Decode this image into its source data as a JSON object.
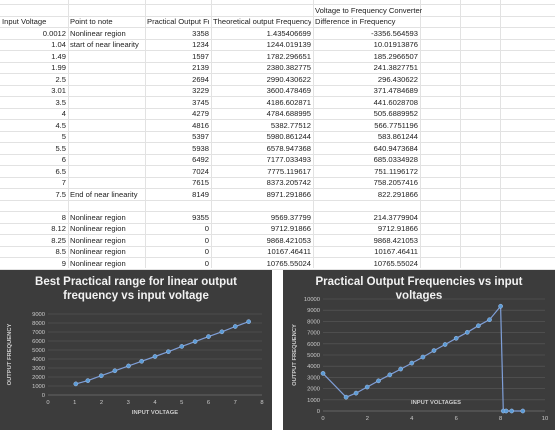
{
  "sheet": {
    "merged_title": "Voltage to Frequency Converter",
    "headers": [
      "Input Voltage",
      "Point to note",
      "Practical Output Fre",
      "Theoretical output Frequency",
      "Difference in Frequency"
    ],
    "rows": [
      [
        "0.0012",
        "Nonlinear region",
        "3358",
        "1.435406699",
        "-3356.564593"
      ],
      [
        "1.04",
        "start of near linearity",
        "1234",
        "1244.019139",
        "10.01913876"
      ],
      [
        "1.49",
        "",
        "1597",
        "1782.296651",
        "185.2966507"
      ],
      [
        "1.99",
        "",
        "2139",
        "2380.382775",
        "241.3827751"
      ],
      [
        "2.5",
        "",
        "2694",
        "2990.430622",
        "296.430622"
      ],
      [
        "3.01",
        "",
        "3229",
        "3600.478469",
        "371.4784689"
      ],
      [
        "3.5",
        "",
        "3745",
        "4186.602871",
        "441.6028708"
      ],
      [
        "4",
        "",
        "4279",
        "4784.688995",
        "505.6889952"
      ],
      [
        "4.5",
        "",
        "4816",
        "5382.77512",
        "566.7751196"
      ],
      [
        "5",
        "",
        "5397",
        "5980.861244",
        "583.861244"
      ],
      [
        "5.5",
        "",
        "5938",
        "6578.947368",
        "640.9473684"
      ],
      [
        "6",
        "",
        "6492",
        "7177.033493",
        "685.0334928"
      ],
      [
        "6.5",
        "",
        "7024",
        "7775.119617",
        "751.1196172"
      ],
      [
        "7",
        "",
        "7615",
        "8373.205742",
        "758.2057416"
      ],
      [
        "7.5",
        "End of near linearity",
        "8149",
        "8971.291866",
        "822.291866"
      ],
      [
        "",
        "",
        "",
        "",
        ""
      ],
      [
        "8",
        "Nonlinear region",
        "9355",
        "9569.37799",
        "214.3779904"
      ],
      [
        "8.12",
        "Nonlinear region",
        "0",
        "9712.91866",
        "9712.91866"
      ],
      [
        "8.25",
        "Nonlinear region",
        "0",
        "9868.421053",
        "9868.421053"
      ],
      [
        "8.5",
        "Nonlinear region",
        "0",
        "10167.46411",
        "10167.46411"
      ],
      [
        "9",
        "Nonlinear region",
        "0",
        "10765.55024",
        "10765.55024"
      ]
    ]
  },
  "chart_data": [
    {
      "type": "line",
      "title": "Best Practical range for linear output frequency vs input voltage",
      "xlabel": "INPUT VOLTAGE",
      "ylabel": "OUTPUT FREQUENCY",
      "xlim": [
        0,
        8
      ],
      "ylim": [
        0,
        9000
      ],
      "xticks": [
        0,
        1,
        2,
        3,
        4,
        5,
        6,
        7,
        8
      ],
      "yticks": [
        0,
        1000,
        2000,
        3000,
        4000,
        5000,
        6000,
        7000,
        8000,
        9000
      ],
      "x": [
        1.04,
        1.49,
        1.99,
        2.5,
        3.01,
        3.5,
        4,
        4.5,
        5,
        5.5,
        6,
        6.5,
        7,
        7.5
      ],
      "y": [
        1234,
        1597,
        2139,
        2694,
        3229,
        3745,
        4279,
        4816,
        5397,
        5938,
        6492,
        7024,
        7615,
        8149
      ],
      "grid": true,
      "colors": {
        "line": "#7f9fd8",
        "marker": "#5b9bd5",
        "bg": "#3c3c3c",
        "text": "#cccccc"
      }
    },
    {
      "type": "line",
      "title": "Practical Output Frequencies vs input voltages",
      "xlabel": "INPUT VOLTAGES",
      "ylabel": "OUTPUT FREQUENCY",
      "xlim": [
        0,
        10
      ],
      "ylim": [
        0,
        10000
      ],
      "xticks": [
        0,
        2,
        4,
        6,
        8,
        10
      ],
      "yticks": [
        0,
        1000,
        2000,
        3000,
        4000,
        5000,
        6000,
        7000,
        8000,
        9000,
        10000
      ],
      "x": [
        0.0012,
        1.04,
        1.49,
        1.99,
        2.5,
        3.01,
        3.5,
        4,
        4.5,
        5,
        5.5,
        6,
        6.5,
        7,
        7.5,
        8,
        8.12,
        8.25,
        8.5,
        9
      ],
      "y": [
        3358,
        1234,
        1597,
        2139,
        2694,
        3229,
        3745,
        4279,
        4816,
        5397,
        5938,
        6492,
        7024,
        7615,
        8149,
        9355,
        0,
        0,
        0,
        0
      ],
      "grid": true,
      "colors": {
        "line": "#7f9fd8",
        "marker": "#5b9bd5",
        "bg": "#3c3c3c",
        "text": "#cccccc"
      }
    }
  ]
}
